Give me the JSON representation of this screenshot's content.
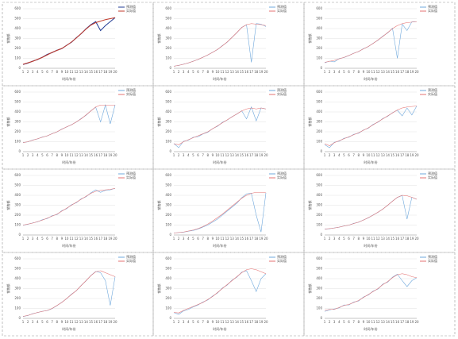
{
  "chart_data": [
    {
      "type": "line",
      "x_label": "时间/年份",
      "y_label": "销售额",
      "categories": [
        "1",
        "2",
        "3",
        "4",
        "5",
        "6",
        "7",
        "8",
        "9",
        "10",
        "11",
        "12",
        "13",
        "14",
        "15",
        "16",
        "17",
        "18",
        "19",
        "20"
      ],
      "ylim": [
        0,
        600
      ],
      "yticks": [
        0,
        100,
        200,
        300,
        400,
        500,
        600
      ],
      "grid": true,
      "legend": "upper right",
      "series": [
        {
          "name": "预测值",
          "color": "#1f3a93",
          "values": [
            38,
            52,
            72,
            88,
            112,
            140,
            158,
            182,
            198,
            232,
            262,
            308,
            348,
            398,
            440,
            470,
            380,
            430,
            470,
            510
          ]
        },
        {
          "name": "实际值",
          "color": "#c0392b",
          "values": [
            40,
            55,
            70,
            90,
            110,
            135,
            160,
            180,
            200,
            230,
            265,
            305,
            350,
            395,
            435,
            460,
            475,
            490,
            500,
            510
          ]
        }
      ]
    },
    {
      "type": "line",
      "x_label": "时间/年份",
      "y_label": "销售额",
      "categories": [
        "1",
        "2",
        "3",
        "4",
        "5",
        "6",
        "7",
        "8",
        "9",
        "10",
        "11",
        "12",
        "13",
        "14",
        "15",
        "16",
        "17",
        "18",
        "19",
        "20"
      ],
      "ylim": [
        0,
        600
      ],
      "yticks": [
        0,
        100,
        200,
        300,
        400,
        500,
        600
      ],
      "grid": true,
      "legend": "upper right",
      "series": [
        {
          "name": "预测值",
          "color": "#6fa8dc",
          "values": [
            22,
            28,
            42,
            53,
            72,
            88,
            112,
            133,
            162,
            188,
            228,
            262,
            312,
            358,
            412,
            438,
            60,
            450,
            445,
            420
          ]
        },
        {
          "name": "实际值",
          "color": "#e57373",
          "values": [
            20,
            30,
            40,
            55,
            70,
            90,
            110,
            135,
            160,
            190,
            225,
            265,
            310,
            360,
            410,
            440,
            450,
            445,
            440,
            430
          ]
        }
      ]
    },
    {
      "type": "line",
      "x_label": "时间/年份",
      "y_label": "销售额",
      "categories": [
        "1",
        "2",
        "3",
        "4",
        "5",
        "6",
        "7",
        "8",
        "9",
        "10",
        "11",
        "12",
        "13",
        "14",
        "15",
        "16",
        "17",
        "18",
        "19",
        "20"
      ],
      "ylim": [
        0,
        600
      ],
      "yticks": [
        0,
        100,
        200,
        300,
        400,
        500,
        600
      ],
      "grid": true,
      "legend": "upper right",
      "series": [
        {
          "name": "预测值",
          "color": "#6fa8dc",
          "values": [
            55,
            72,
            65,
            98,
            108,
            128,
            152,
            168,
            198,
            218,
            252,
            282,
            324,
            356,
            404,
            100,
            445,
            380,
            468,
            470
          ]
        },
        {
          "name": "实际值",
          "color": "#e57373",
          "values": [
            60,
            70,
            80,
            95,
            110,
            130,
            150,
            170,
            195,
            220,
            250,
            285,
            320,
            360,
            400,
            430,
            450,
            460,
            465,
            470
          ]
        }
      ]
    },
    {
      "type": "line",
      "x_label": "时间/年份",
      "y_label": "销售额",
      "categories": [
        "1",
        "2",
        "3",
        "4",
        "5",
        "6",
        "7",
        "8",
        "9",
        "10",
        "11",
        "12",
        "13",
        "14",
        "15",
        "16",
        "17",
        "18",
        "19",
        "20"
      ],
      "ylim": [
        0,
        600
      ],
      "yticks": [
        0,
        100,
        200,
        300,
        400,
        500,
        600
      ],
      "grid": true,
      "legend": "upper right",
      "series": [
        {
          "name": "预测值",
          "color": "#6fa8dc",
          "values": [
            92,
            98,
            118,
            128,
            148,
            158,
            182,
            198,
            228,
            248,
            272,
            298,
            334,
            366,
            412,
            448,
            300,
            470,
            280,
            470
          ]
        },
        {
          "name": "实际值",
          "color": "#e57373",
          "values": [
            90,
            100,
            115,
            130,
            145,
            160,
            180,
            200,
            225,
            250,
            270,
            300,
            330,
            370,
            410,
            450,
            470,
            470,
            470,
            470
          ]
        }
      ]
    },
    {
      "type": "line",
      "x_label": "时间/年份",
      "y_label": "销售额",
      "categories": [
        "1",
        "2",
        "3",
        "4",
        "5",
        "6",
        "7",
        "8",
        "9",
        "10",
        "11",
        "12",
        "13",
        "14",
        "15",
        "16",
        "17",
        "18",
        "19",
        "20"
      ],
      "ylim": [
        0,
        600
      ],
      "yticks": [
        0,
        100,
        200,
        300,
        400,
        500,
        600
      ],
      "grid": true,
      "legend": "upper right",
      "series": [
        {
          "name": "预测值",
          "color": "#6fa8dc",
          "values": [
            82,
            40,
            105,
            115,
            145,
            150,
            178,
            195,
            232,
            255,
            295,
            318,
            352,
            378,
            412,
            330,
            450,
            310,
            440,
            430
          ]
        },
        {
          "name": "实际值",
          "color": "#e57373",
          "values": [
            80,
            70,
            100,
            120,
            140,
            160,
            180,
            200,
            230,
            260,
            290,
            320,
            350,
            380,
            410,
            430,
            440,
            430,
            440,
            430
          ]
        }
      ]
    },
    {
      "type": "line",
      "x_label": "时间/年份",
      "y_label": "销售额",
      "categories": [
        "1",
        "2",
        "3",
        "4",
        "5",
        "6",
        "7",
        "8",
        "9",
        "10",
        "11",
        "12",
        "13",
        "14",
        "15",
        "16",
        "17",
        "18",
        "19",
        "20"
      ],
      "ylim": [
        0,
        600
      ],
      "yticks": [
        0,
        100,
        200,
        300,
        400,
        500,
        600
      ],
      "grid": true,
      "legend": "upper right",
      "series": [
        {
          "name": "预测值",
          "color": "#6fa8dc",
          "values": [
            70,
            40,
            95,
            105,
            135,
            145,
            175,
            185,
            218,
            236,
            275,
            296,
            334,
            356,
            392,
            418,
            360,
            440,
            370,
            460
          ]
        },
        {
          "name": "实际值",
          "color": "#e57373",
          "values": [
            80,
            60,
            90,
            110,
            130,
            150,
            170,
            190,
            215,
            240,
            270,
            300,
            330,
            360,
            390,
            420,
            440,
            450,
            455,
            460
          ]
        }
      ]
    },
    {
      "type": "line",
      "x_label": "时间/年份",
      "y_label": "销售额",
      "categories": [
        "1",
        "2",
        "3",
        "4",
        "5",
        "6",
        "7",
        "8",
        "9",
        "10",
        "11",
        "12",
        "13",
        "14",
        "15",
        "16",
        "17",
        "18",
        "19",
        "20"
      ],
      "ylim": [
        0,
        600
      ],
      "yticks": [
        0,
        100,
        200,
        300,
        400,
        500,
        600
      ],
      "grid": true,
      "legend": "upper right",
      "series": [
        {
          "name": "预测值",
          "color": "#6fa8dc",
          "values": [
            98,
            108,
            122,
            132,
            155,
            165,
            195,
            205,
            245,
            265,
            305,
            325,
            365,
            385,
            425,
            455,
            430,
            450,
            455,
            470
          ]
        },
        {
          "name": "实际值",
          "color": "#e57373",
          "values": [
            100,
            110,
            120,
            135,
            150,
            170,
            190,
            210,
            240,
            270,
            300,
            330,
            360,
            390,
            420,
            440,
            450,
            455,
            460,
            470
          ]
        }
      ]
    },
    {
      "type": "line",
      "x_label": "时间/年份",
      "y_label": "销售额",
      "categories": [
        "1",
        "2",
        "3",
        "4",
        "5",
        "6",
        "7",
        "8",
        "9",
        "10",
        "11",
        "12",
        "13",
        "14",
        "15",
        "16",
        "17",
        "18",
        "19",
        "20"
      ],
      "ylim": [
        0,
        600
      ],
      "yticks": [
        0,
        100,
        200,
        300,
        400,
        500,
        600
      ],
      "grid": true,
      "legend": "upper right",
      "series": [
        {
          "name": "预测值",
          "color": "#6fa8dc",
          "values": [
            22,
            24,
            28,
            38,
            45,
            60,
            80,
            100,
            130,
            160,
            200,
            240,
            280,
            320,
            375,
            415,
            420,
            200,
            30,
            425
          ]
        },
        {
          "name": "实际值",
          "color": "#e57373",
          "values": [
            20,
            25,
            30,
            40,
            50,
            65,
            85,
            110,
            140,
            175,
            210,
            250,
            290,
            330,
            370,
            400,
            420,
            430,
            430,
            425
          ]
        }
      ]
    },
    {
      "type": "line",
      "x_label": "时间/年份",
      "y_label": "销售额",
      "categories": [
        "1",
        "2",
        "3",
        "4",
        "5",
        "6",
        "7",
        "8",
        "9",
        "10",
        "11",
        "12",
        "13",
        "14",
        "15",
        "16",
        "17",
        "18",
        "19",
        "20"
      ],
      "ylim": [
        0,
        600
      ],
      "yticks": [
        0,
        100,
        200,
        300,
        400,
        500,
        600
      ],
      "grid": true,
      "legend": "upper right",
      "series": [
        {
          "name": "预测值",
          "color": "#6fa8dc",
          "values": [
            58,
            62,
            72,
            78,
            92,
            98,
            118,
            128,
            152,
            172,
            202,
            228,
            262,
            298,
            342,
            378,
            398,
            160,
            380,
            360
          ]
        },
        {
          "name": "实际值",
          "color": "#e57373",
          "values": [
            60,
            65,
            70,
            80,
            90,
            100,
            115,
            130,
            150,
            175,
            200,
            230,
            260,
            300,
            340,
            380,
            400,
            395,
            380,
            360
          ]
        }
      ]
    },
    {
      "type": "line",
      "x_label": "时间/年份",
      "y_label": "销售额",
      "categories": [
        "1",
        "2",
        "3",
        "4",
        "5",
        "6",
        "7",
        "8",
        "9",
        "10",
        "11",
        "12",
        "13",
        "14",
        "15",
        "16",
        "17",
        "18",
        "19",
        "20"
      ],
      "ylim": [
        0,
        600
      ],
      "yticks": [
        0,
        100,
        200,
        300,
        400,
        500,
        600
      ],
      "grid": true,
      "legend": "upper right",
      "series": [
        {
          "name": "预测值",
          "color": "#6fa8dc",
          "values": [
            18,
            28,
            48,
            58,
            72,
            78,
            98,
            128,
            162,
            198,
            244,
            278,
            332,
            378,
            432,
            472,
            460,
            380,
            130,
            420
          ]
        },
        {
          "name": "实际值",
          "color": "#e57373",
          "values": [
            20,
            30,
            45,
            60,
            70,
            80,
            100,
            130,
            160,
            200,
            240,
            280,
            330,
            380,
            430,
            470,
            480,
            460,
            440,
            420
          ]
        }
      ]
    },
    {
      "type": "line",
      "x_label": "时间/年份",
      "y_label": "销售额",
      "categories": [
        "1",
        "2",
        "3",
        "4",
        "5",
        "6",
        "7",
        "8",
        "9",
        "10",
        "11",
        "12",
        "13",
        "14",
        "15",
        "16",
        "17",
        "18",
        "19",
        "20"
      ],
      "ylim": [
        0,
        600
      ],
      "yticks": [
        0,
        100,
        200,
        300,
        400,
        500,
        600
      ],
      "grid": true,
      "legend": "upper right",
      "series": [
        {
          "name": "预测值",
          "color": "#6fa8dc",
          "values": [
            58,
            40,
            75,
            90,
            115,
            135,
            165,
            185,
            225,
            255,
            305,
            335,
            385,
            415,
            465,
            480,
            380,
            270,
            400,
            450
          ]
        },
        {
          "name": "实际值",
          "color": "#e57373",
          "values": [
            60,
            55,
            80,
            100,
            120,
            140,
            160,
            190,
            220,
            260,
            300,
            340,
            380,
            420,
            460,
            490,
            500,
            490,
            470,
            450
          ]
        }
      ]
    },
    {
      "type": "line",
      "x_label": "时间/年份",
      "y_label": "销售额",
      "categories": [
        "1",
        "2",
        "3",
        "4",
        "5",
        "6",
        "7",
        "8",
        "9",
        "10",
        "11",
        "12",
        "13",
        "14",
        "15",
        "16",
        "17",
        "18",
        "19",
        "20"
      ],
      "ylim": [
        0,
        600
      ],
      "yticks": [
        0,
        100,
        200,
        300,
        400,
        500,
        600
      ],
      "grid": true,
      "legend": "upper right",
      "series": [
        {
          "name": "预测值",
          "color": "#6fa8dc",
          "values": [
            70,
            85,
            95,
            105,
            135,
            135,
            165,
            175,
            215,
            235,
            275,
            295,
            345,
            365,
            415,
            445,
            380,
            320,
            380,
            410
          ]
        },
        {
          "name": "实际值",
          "color": "#e57373",
          "values": [
            80,
            90,
            90,
            110,
            130,
            140,
            160,
            180,
            210,
            240,
            270,
            300,
            340,
            370,
            410,
            440,
            450,
            440,
            420,
            410
          ]
        }
      ]
    }
  ]
}
